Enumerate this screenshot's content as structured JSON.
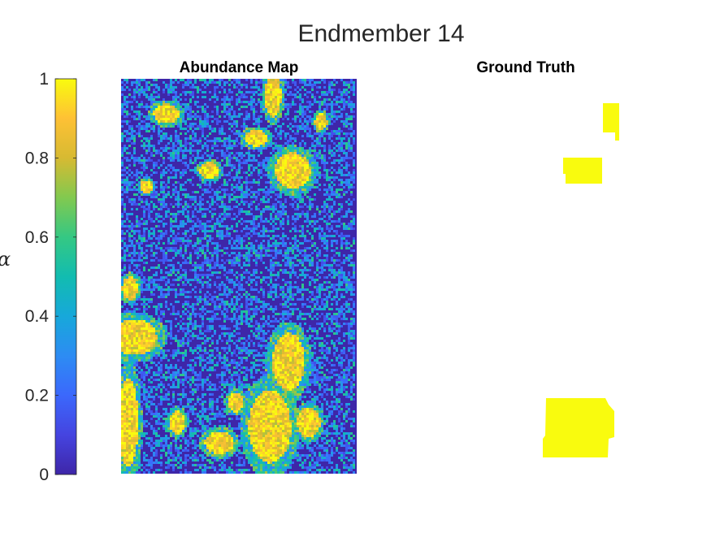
{
  "figure": {
    "title": "Endmember 14"
  },
  "chart_data": [
    {
      "type": "heatmap",
      "title": "Abundance Map",
      "colormap": "parula",
      "clim": [
        0,
        1
      ],
      "description_of_values": "abundance fraction per pixel; mostly low (~0.05-0.2) with high-abundance patches near 1",
      "grid": false,
      "colors": {
        "low": "#3e26a8",
        "high": "#f9fb0e"
      }
    },
    {
      "type": "heatmap",
      "title": "Ground Truth",
      "values_shown": [
        1
      ],
      "grid": false,
      "colors": {
        "positive": "#f9fb0e",
        "background": "#ffffff"
      }
    }
  ],
  "colorbar": {
    "label": "α",
    "ticks": [
      "0",
      "0.2",
      "0.4",
      "0.6",
      "0.8",
      "1"
    ],
    "tick_values": [
      0,
      0.2,
      0.4,
      0.6,
      0.8,
      1
    ],
    "range": [
      0,
      1
    ]
  }
}
